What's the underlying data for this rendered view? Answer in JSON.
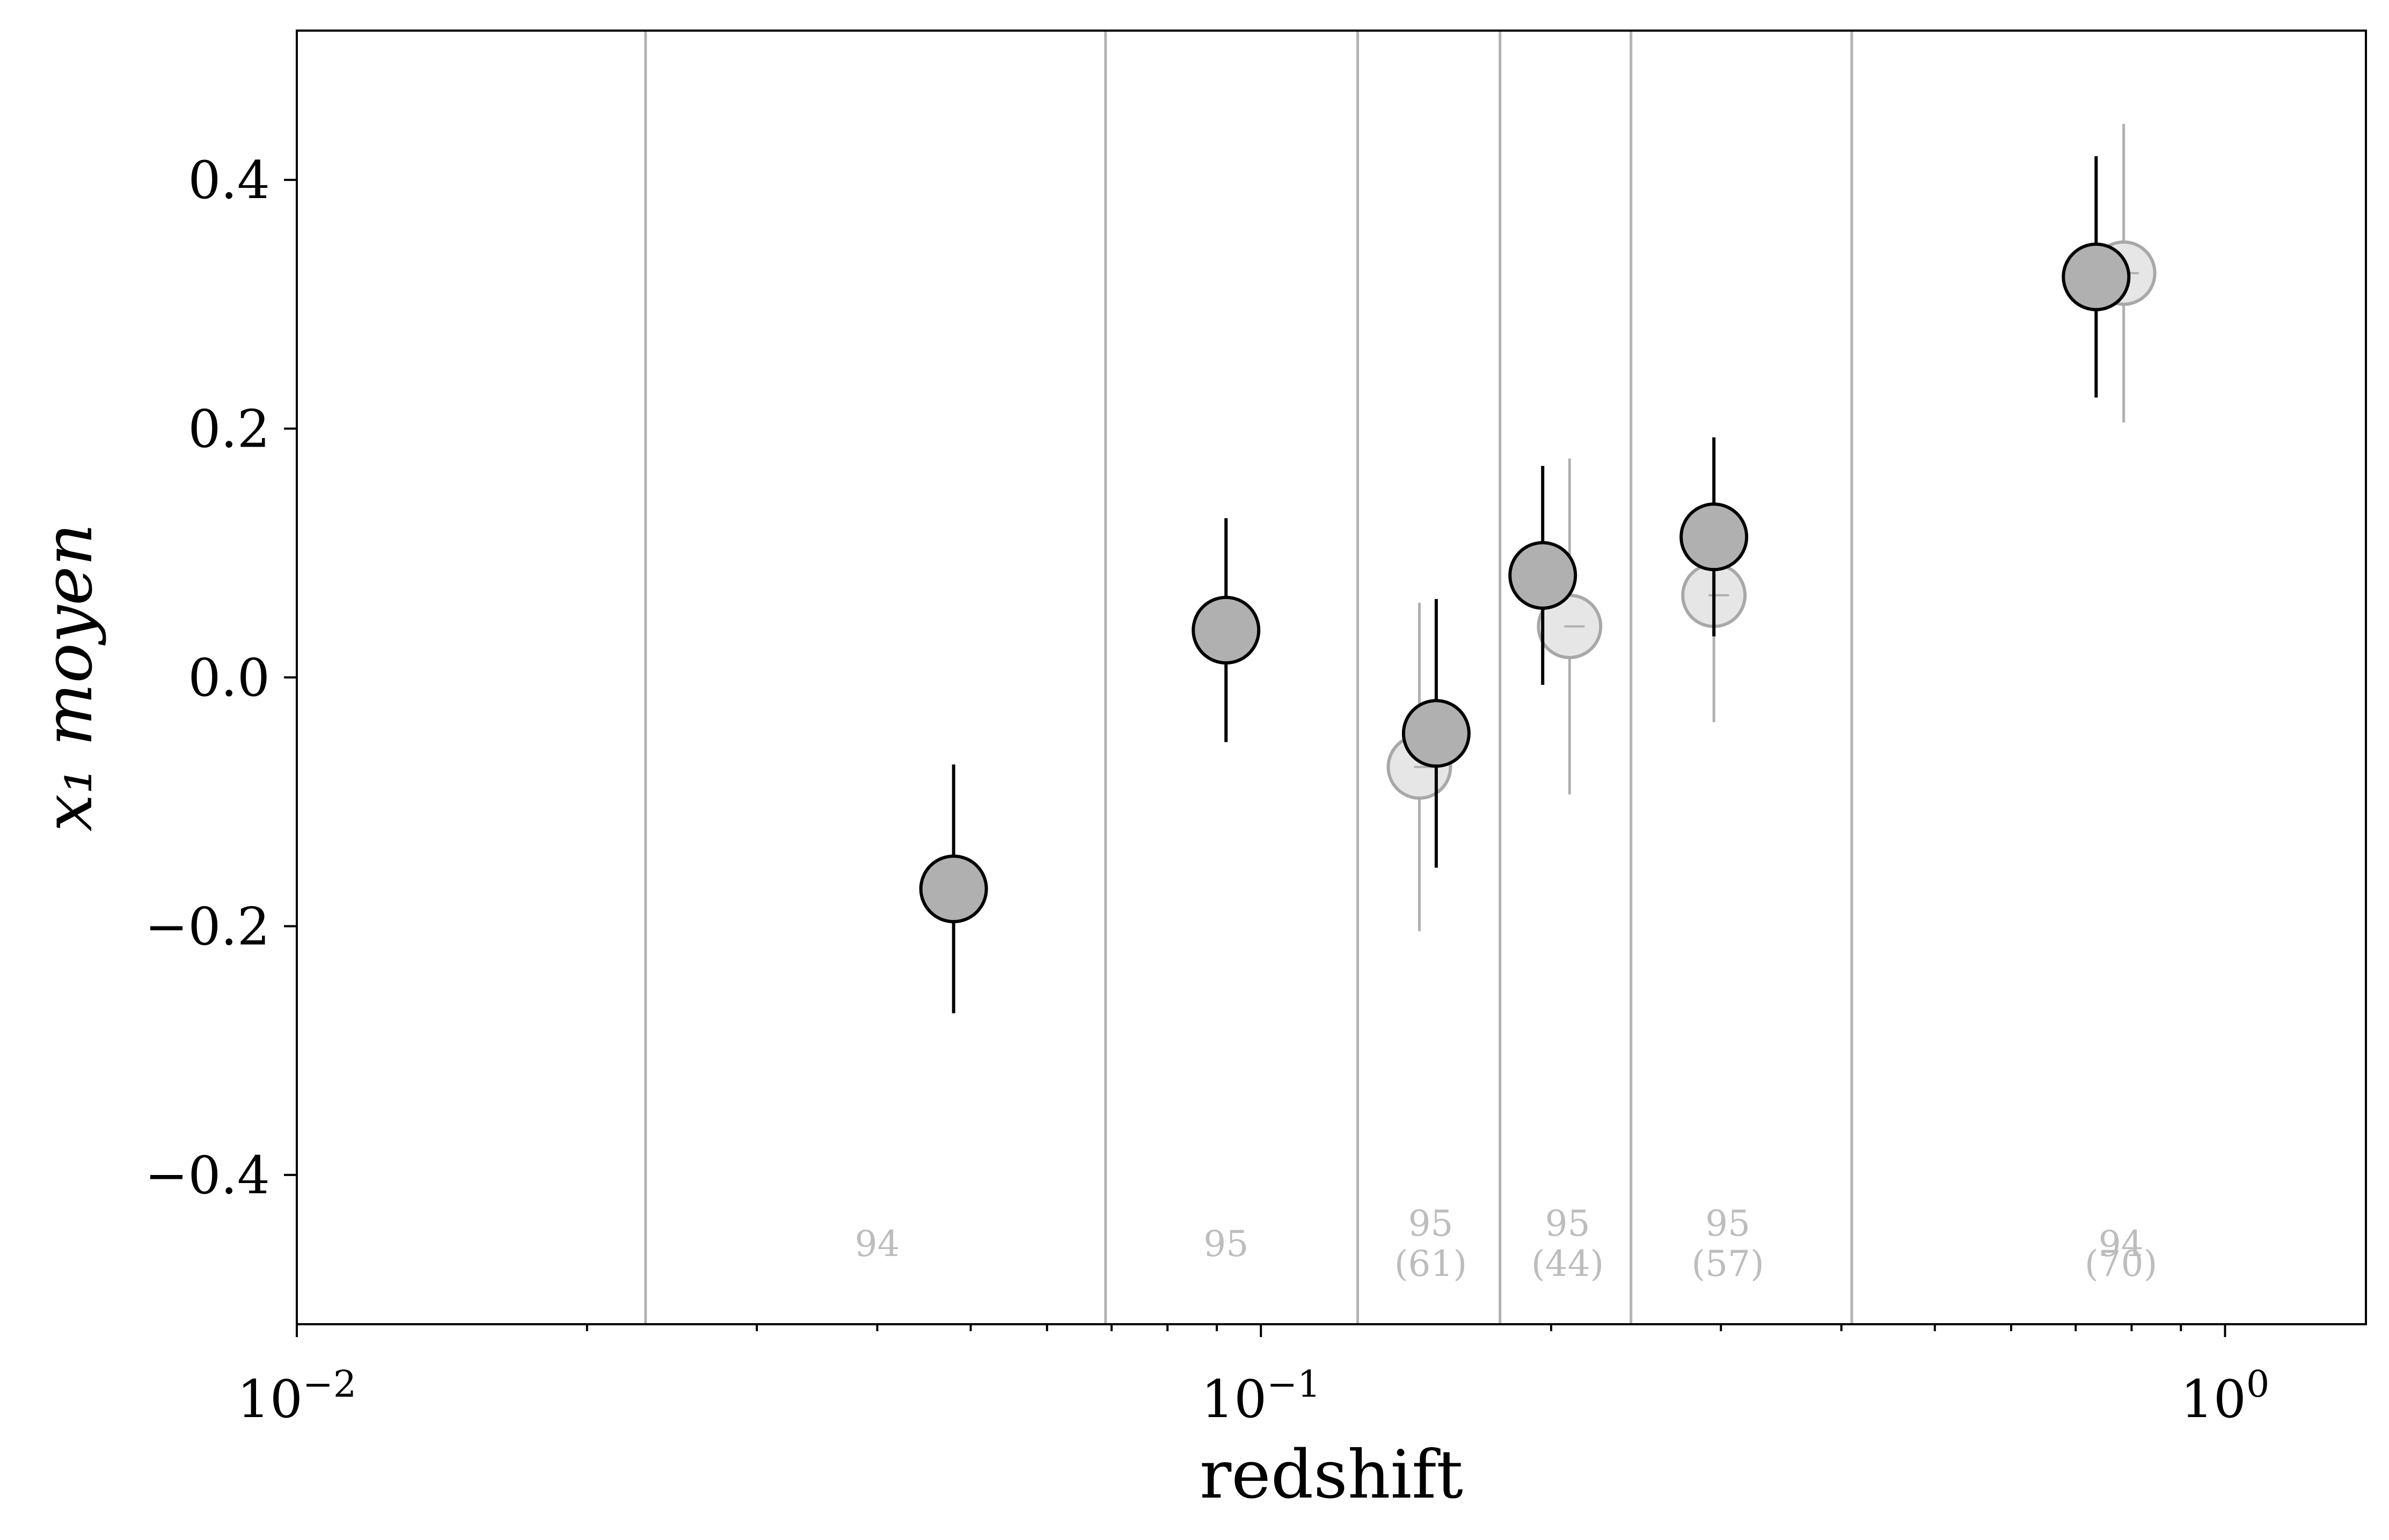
{
  "chart_data": {
    "type": "scatter",
    "title": "",
    "xlabel": "redshift",
    "ylabel": "x₁ moyen",
    "xscale": "log",
    "xlim": [
      0.01,
      1.4
    ],
    "ylim": [
      -0.52,
      0.52
    ],
    "grid": false,
    "xticks": [
      {
        "value": 0.01,
        "base": "10",
        "exp": "−2"
      },
      {
        "value": 0.1,
        "base": "10",
        "exp": "−1"
      },
      {
        "value": 1,
        "base": "10",
        "exp": "0"
      }
    ],
    "yticks": [
      {
        "value": 0.4,
        "label": "0.4"
      },
      {
        "value": 0.2,
        "label": "0.2"
      },
      {
        "value": 0.0,
        "label": "0.0"
      },
      {
        "value": -0.2,
        "label": "−0.2"
      },
      {
        "value": -0.4,
        "label": "−0.4"
      }
    ],
    "bin_edges": [
      0.023,
      0.069,
      0.126,
      0.177,
      0.242,
      0.41
    ],
    "bin_counts": [
      {
        "x": 0.04,
        "lines": [
          "94"
        ]
      },
      {
        "x": 0.092,
        "lines": [
          "95"
        ]
      },
      {
        "x": 0.15,
        "lines": [
          "95",
          "(61)"
        ]
      },
      {
        "x": 0.208,
        "lines": [
          "95",
          "(44)"
        ]
      },
      {
        "x": 0.305,
        "lines": [
          "95",
          "(57)"
        ]
      },
      {
        "x": 0.78,
        "lines": [
          "94"
        ]
      },
      {
        "x": 0.78,
        "lines": [
          "",
          "(70)"
        ]
      }
    ],
    "series": [
      {
        "style": "primary",
        "color": "#b0b0b0",
        "edge": "#000000",
        "points": [
          {
            "x": 0.048,
            "y": -0.17,
            "yerr": 0.1
          },
          {
            "x": 0.092,
            "y": 0.038,
            "yerr": 0.09
          },
          {
            "x": 0.152,
            "y": -0.045,
            "yerr": 0.108
          },
          {
            "x": 0.196,
            "y": 0.082,
            "yerr": 0.088
          },
          {
            "x": 0.295,
            "y": 0.113,
            "yerr": 0.08
          },
          {
            "x": 0.735,
            "y": 0.322,
            "yerr": 0.097
          }
        ]
      },
      {
        "style": "secondary",
        "color": "#e6e6e6",
        "edge": "#a8a8a8",
        "points": [
          {
            "x": 0.146,
            "y": -0.072,
            "yerr": 0.132
          },
          {
            "x": 0.209,
            "y": 0.041,
            "yerr": 0.135
          },
          {
            "x": 0.295,
            "y": 0.066,
            "yerr": 0.102
          },
          {
            "x": 0.785,
            "y": 0.325,
            "yerr": 0.12
          }
        ]
      }
    ]
  }
}
